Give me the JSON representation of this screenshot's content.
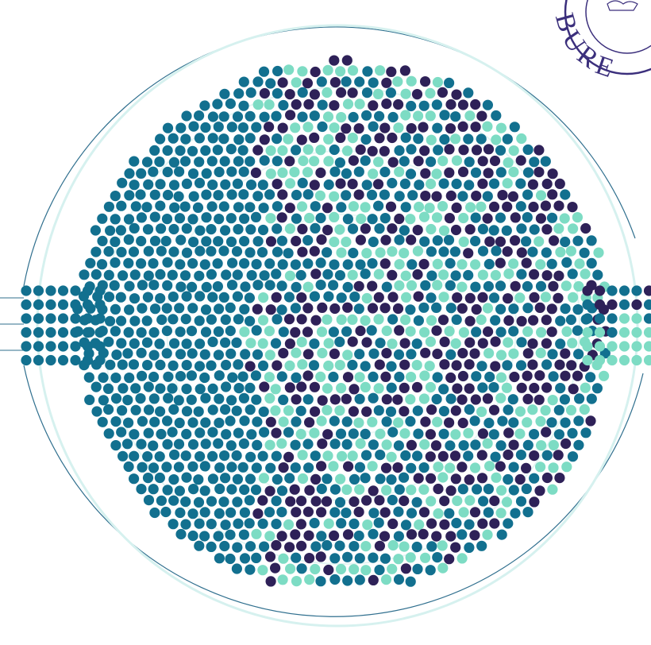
{
  "seal": {
    "text": "BURE"
  }
}
